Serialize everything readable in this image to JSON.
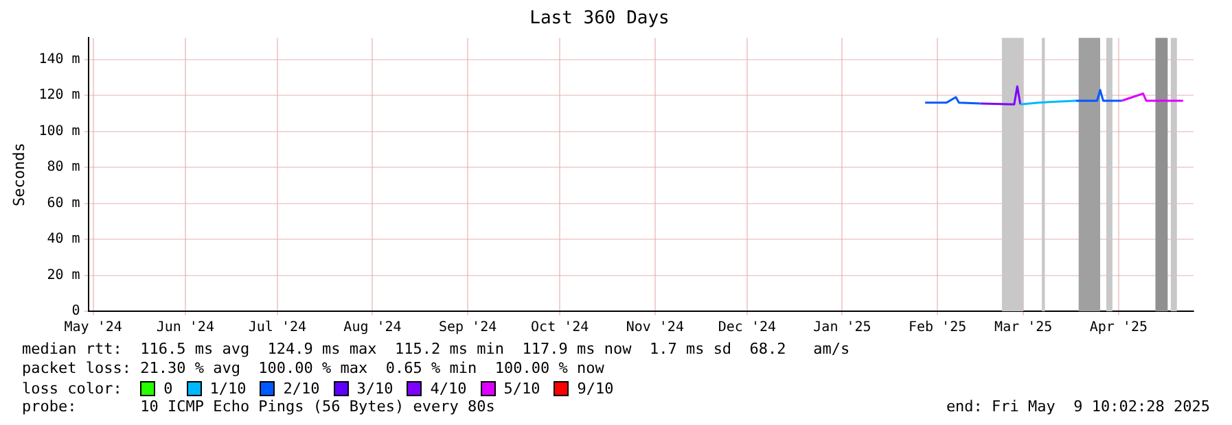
{
  "chart_data": {
    "type": "line",
    "title": "Last 360 Days",
    "ylabel": "Seconds",
    "x": [
      "2025-02-11",
      "2025-02-18",
      "2025-02-21",
      "2025-02-22",
      "2025-03-01",
      "2025-03-12",
      "2025-03-13",
      "2025-03-14",
      "2025-03-20",
      "2025-04-01",
      "2025-04-08",
      "2025-04-09",
      "2025-04-10",
      "2025-04-16",
      "2025-04-23",
      "2025-04-24",
      "2025-05-06"
    ],
    "series": [
      {
        "name": "0",
        "color": "#26ff00",
        "values": [
          null,
          null,
          null,
          null,
          null,
          null,
          null,
          null,
          null,
          null,
          null,
          null,
          null,
          null,
          null,
          null,
          null
        ]
      },
      {
        "name": "1/10",
        "color": "#00b8ff",
        "values": [
          null,
          null,
          null,
          null,
          null,
          null,
          null,
          115,
          116,
          117,
          null,
          null,
          null,
          null,
          null,
          null,
          null
        ]
      },
      {
        "name": "2/10",
        "color": "#0059ff",
        "values": [
          116,
          116,
          119,
          116,
          115.5,
          null,
          null,
          null,
          null,
          117,
          117,
          123,
          117,
          117,
          null,
          null,
          null
        ]
      },
      {
        "name": "3/10",
        "color": "#5e00ff",
        "values": [
          null,
          null,
          null,
          null,
          null,
          null,
          null,
          null,
          null,
          null,
          null,
          null,
          null,
          null,
          null,
          null,
          null
        ]
      },
      {
        "name": "4/10",
        "color": "#7e00ff",
        "values": [
          null,
          null,
          null,
          null,
          115.5,
          115,
          125,
          115,
          null,
          null,
          null,
          null,
          null,
          null,
          null,
          null,
          null
        ]
      },
      {
        "name": "5/10",
        "color": "#dd00ff",
        "values": [
          null,
          null,
          null,
          null,
          null,
          null,
          null,
          null,
          null,
          null,
          null,
          null,
          null,
          117,
          121,
          117,
          117
        ]
      },
      {
        "name": "9/10",
        "color": "#ff0000",
        "values": [
          null,
          null,
          null,
          null,
          null,
          null,
          null,
          null,
          null,
          null,
          null,
          null,
          null,
          null,
          null,
          null,
          null
        ]
      }
    ],
    "legend_title": "loss color:",
    "legend": "bottom",
    "xlim": [
      "2024-05-14T10:02",
      "2025-05-09T10:02"
    ],
    "xticks": [
      {
        "value": "2024-05-16",
        "label": "May '24"
      },
      {
        "value": "2024-06-15",
        "label": "Jun '24"
      },
      {
        "value": "2024-07-15",
        "label": "Jul '24"
      },
      {
        "value": "2024-08-15",
        "label": "Aug '24"
      },
      {
        "value": "2024-09-15",
        "label": "Sep '24"
      },
      {
        "value": "2024-10-15",
        "label": "Oct '24"
      },
      {
        "value": "2024-11-15",
        "label": "Nov '24"
      },
      {
        "value": "2024-12-15",
        "label": "Dec '24"
      },
      {
        "value": "2025-01-15",
        "label": "Jan '25"
      },
      {
        "value": "2025-02-15",
        "label": "Feb '25"
      },
      {
        "value": "2025-03-15",
        "label": "Mar '25"
      },
      {
        "value": "2025-04-15",
        "label": "Apr '25"
      }
    ],
    "ylim": [
      0,
      152
    ],
    "yticks": [
      {
        "value": 0,
        "label": "0"
      },
      {
        "value": 20,
        "label": "20 m"
      },
      {
        "value": 40,
        "label": "40 m"
      },
      {
        "value": 60,
        "label": "60 m"
      },
      {
        "value": 80,
        "label": "80 m"
      },
      {
        "value": 100,
        "label": "100 m"
      },
      {
        "value": 120,
        "label": "120 m"
      },
      {
        "value": 140,
        "label": "140 m"
      }
    ],
    "grid": true,
    "marker": "none",
    "line_style": "solid",
    "bands": [
      {
        "axis": "x",
        "from": "2025-03-08",
        "to": "2025-03-15",
        "color": "#c8c8c8"
      },
      {
        "axis": "x",
        "from": "2025-03-21",
        "to": "2025-03-22",
        "color": "#c8c8c8"
      },
      {
        "axis": "x",
        "from": "2025-04-02",
        "to": "2025-04-09",
        "color": "#a0a0a0"
      },
      {
        "axis": "x",
        "from": "2025-04-11",
        "to": "2025-04-13",
        "color": "#c8c8c8"
      },
      {
        "axis": "x",
        "from": "2025-04-27",
        "to": "2025-05-01",
        "color": "#909090"
      },
      {
        "axis": "x",
        "from": "2025-05-02",
        "to": "2025-05-04",
        "color": "#c8c8c8"
      }
    ],
    "annotations": [
      "median rtt:  116.5 ms avg  124.9 ms max  115.2 ms min  117.9 ms now  1.7 ms sd  68.2   am/s",
      "packet loss: 21.30 % avg  100.00 % max  0.65 % min  100.00 % now",
      "probe:       10 ICMP Echo Pings (56 Bytes) every 80s",
      "end: Fri May  9 10:02:28 2025"
    ]
  }
}
